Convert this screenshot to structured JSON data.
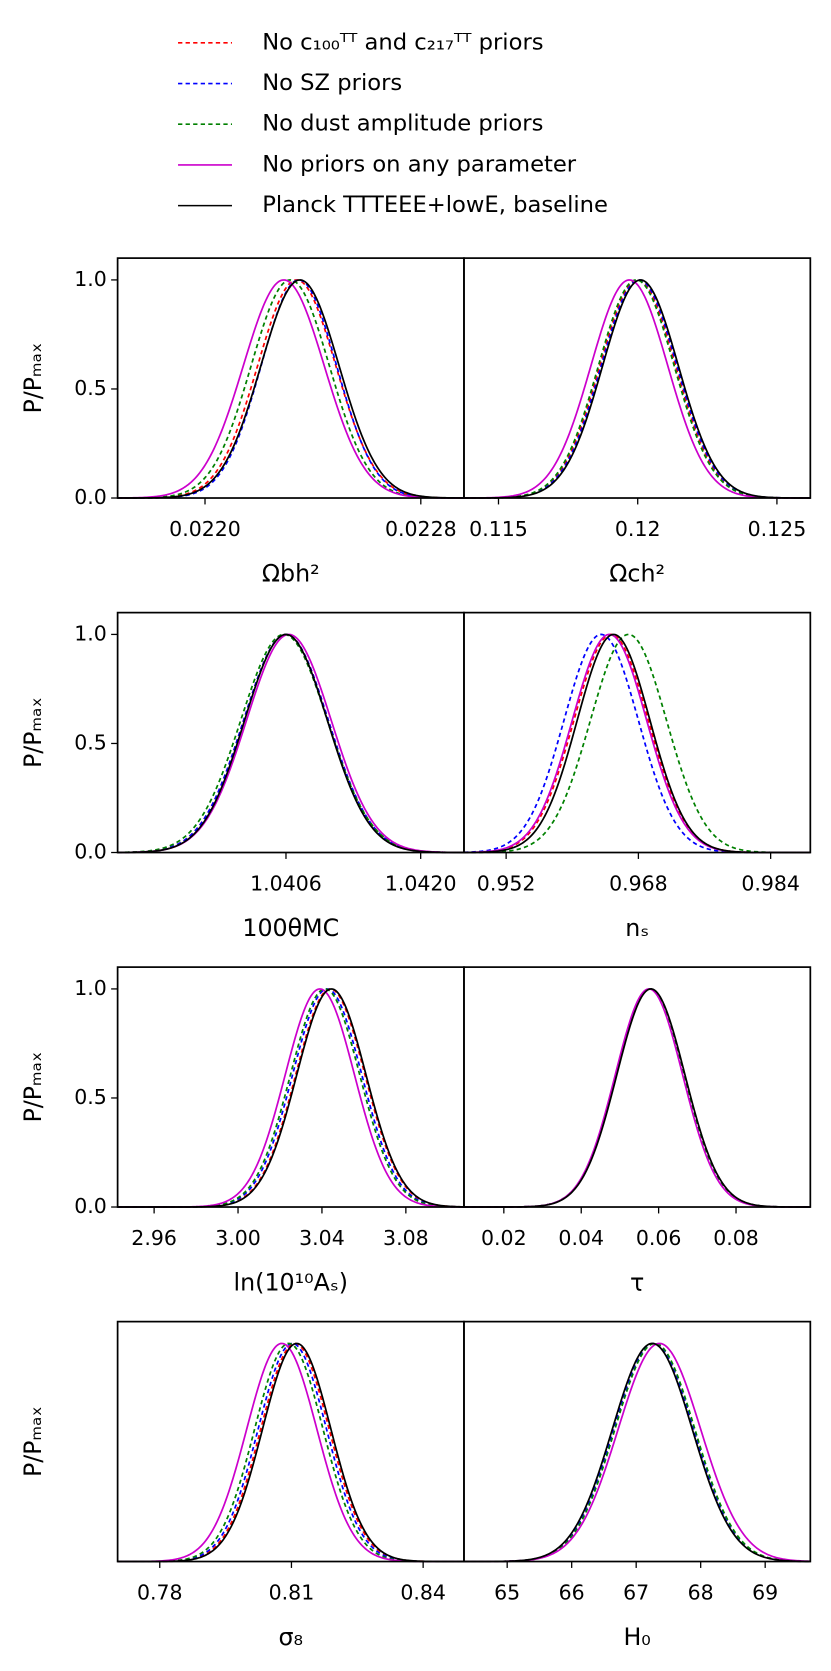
{
  "legend": [
    {
      "name": "No c₁₀₀ᵀᵀ and c₂₁₇ᵀᵀ priors",
      "color": "#ff0000",
      "dashed": true
    },
    {
      "name": "No SZ priors",
      "color": "#0000ff",
      "dashed": true
    },
    {
      "name": "No dust amplitude priors",
      "color": "#008000",
      "dashed": true
    },
    {
      "name": "No priors on any parameter",
      "color": "#cc00cc",
      "dashed": false
    },
    {
      "name": "Planck TTTEEE+lowE, baseline",
      "color": "#000000",
      "dashed": false
    }
  ],
  "chart_data": [
    {
      "type": "gaussian",
      "xlabel": "Ωbh²",
      "ylabel": "P/Pₘₐₓ",
      "xlim": [
        0.021676,
        0.02296
      ],
      "ylim": [
        0,
        1.1
      ],
      "xticks": [
        {
          "value": 0.022,
          "label": "0.0220"
        },
        {
          "value": 0.0228,
          "label": "0.0228"
        }
      ],
      "yticks": [
        {
          "value": 0,
          "label": "0.0"
        },
        {
          "value": 0.5,
          "label": "0.5"
        },
        {
          "value": 1,
          "label": "1.0"
        }
      ],
      "series": [
        {
          "mean": 0.02234,
          "sigma": 0.000145
        },
        {
          "mean": 0.022348,
          "sigma": 0.00014
        },
        {
          "mean": 0.022316,
          "sigma": 0.000145
        },
        {
          "mean": 0.022292,
          "sigma": 0.00015
        },
        {
          "mean": 0.022352,
          "sigma": 0.000145
        }
      ]
    },
    {
      "type": "gaussian",
      "xlabel": "Ωch²",
      "xlim": [
        0.11376,
        0.1262
      ],
      "ylim": [
        0,
        1.1
      ],
      "xticks": [
        0.115,
        0.12,
        0.125
      ],
      "series": [
        {
          "mean": 0.12,
          "sigma": 0.00136
        },
        {
          "mean": 0.12005,
          "sigma": 0.00136
        },
        {
          "mean": 0.11995,
          "sigma": 0.00136
        },
        {
          "mean": 0.1197,
          "sigma": 0.00138
        },
        {
          "mean": 0.1201,
          "sigma": 0.00136
        }
      ]
    },
    {
      "type": "gaussian",
      "xlabel": "100θMC",
      "ylabel": "P/Pₘₐₓ",
      "xlim": [
        1.03885,
        1.04245
      ],
      "ylim": [
        0,
        1.1
      ],
      "xticks": [
        1.0406,
        {
          "value": 1.042,
          "label": "1.0420"
        }
      ],
      "yticks": [
        {
          "value": 0,
          "label": "0.0"
        },
        {
          "value": 0.5,
          "label": "0.5"
        },
        {
          "value": 1,
          "label": "1.0"
        }
      ],
      "series": [
        {
          "mean": 1.0406,
          "sigma": 0.00044
        },
        {
          "mean": 1.0406,
          "sigma": 0.00044
        },
        {
          "mean": 1.04058,
          "sigma": 0.00045
        },
        {
          "mean": 1.04063,
          "sigma": 0.00044
        },
        {
          "mean": 1.0406,
          "sigma": 0.00043
        }
      ]
    },
    {
      "type": "gaussian",
      "xlabel": "nₛ",
      "xlim": [
        0.9469,
        0.9888
      ],
      "ylim": [
        0,
        1.1
      ],
      "xticks": [
        0.952,
        0.968,
        0.984
      ],
      "series": [
        {
          "mean": 0.9647,
          "sigma": 0.0045
        },
        {
          "mean": 0.9635,
          "sigma": 0.0045
        },
        {
          "mean": 0.9668,
          "sigma": 0.0046
        },
        {
          "mean": 0.9645,
          "sigma": 0.0045
        },
        {
          "mean": 0.965,
          "sigma": 0.0044
        }
      ]
    },
    {
      "type": "gaussian",
      "xlabel": "ln(10¹⁰Aₛ)",
      "ylabel": "P/Pₘₐₓ",
      "xlim": [
        2.9426,
        3.1077
      ],
      "ylim": [
        0,
        1.1
      ],
      "xticks": [
        2.96,
        {
          "value": 3,
          "label": "3.00"
        },
        3.04,
        3.08
      ],
      "yticks": [
        {
          "value": 0,
          "label": "0.0"
        },
        {
          "value": 0.5,
          "label": "0.5"
        },
        {
          "value": 1,
          "label": "1.0"
        }
      ],
      "series": [
        {
          "mean": 3.044,
          "sigma": 0.0165
        },
        {
          "mean": 3.0425,
          "sigma": 0.0165
        },
        {
          "mean": 3.0415,
          "sigma": 0.0165
        },
        {
          "mean": 3.039,
          "sigma": 0.0165
        },
        {
          "mean": 3.0445,
          "sigma": 0.0165
        }
      ]
    },
    {
      "type": "gaussian",
      "xlabel": "τ",
      "xlim": [
        0.0097,
        0.0992
      ],
      "ylim": [
        0,
        1.1
      ],
      "xticks": [
        0.02,
        0.04,
        0.06,
        0.08
      ],
      "series": [
        {
          "mean": 0.0578,
          "sigma": 0.0088
        },
        {
          "mean": 0.0578,
          "sigma": 0.0088
        },
        {
          "mean": 0.0578,
          "sigma": 0.0088
        },
        {
          "mean": 0.0575,
          "sigma": 0.0087
        },
        {
          "mean": 0.058,
          "sigma": 0.0088
        }
      ]
    },
    {
      "type": "gaussian",
      "xlabel": "σ₈",
      "ylabel": "P/Pₘₐₓ",
      "xlim": [
        0.7704,
        0.8493
      ],
      "ylim": [
        0,
        1.1
      ],
      "xticks": [
        0.78,
        0.81,
        0.84
      ],
      "series": [
        {
          "mean": 0.8108,
          "sigma": 0.0078
        },
        {
          "mean": 0.8102,
          "sigma": 0.0078
        },
        {
          "mean": 0.8094,
          "sigma": 0.0078
        },
        {
          "mean": 0.8078,
          "sigma": 0.008
        },
        {
          "mean": 0.8112,
          "sigma": 0.0078
        }
      ]
    },
    {
      "type": "gaussian",
      "xlabel": "H₀",
      "xlim": [
        64.33,
        69.7
      ],
      "ylim": [
        0,
        1.1
      ],
      "xticks": [
        65,
        66,
        67,
        68,
        69
      ],
      "series": [
        {
          "mean": 67.27,
          "sigma": 0.62
        },
        {
          "mean": 67.27,
          "sigma": 0.62
        },
        {
          "mean": 67.29,
          "sigma": 0.62
        },
        {
          "mean": 67.36,
          "sigma": 0.64
        },
        {
          "mean": 67.25,
          "sigma": 0.62
        }
      ]
    }
  ]
}
